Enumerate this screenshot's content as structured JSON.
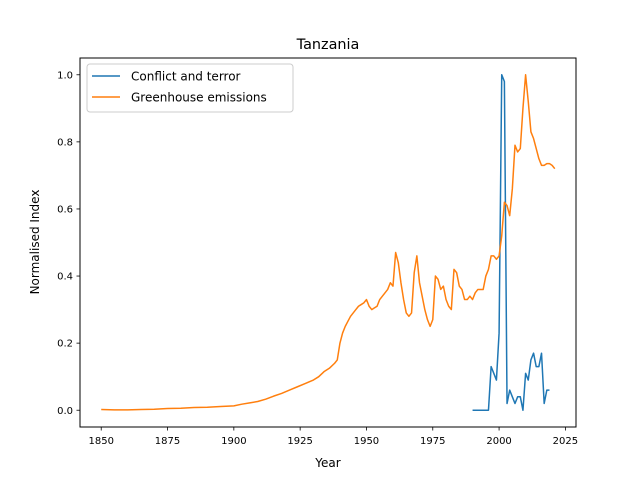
{
  "chart_data": {
    "type": "line",
    "title": "Tanzania",
    "xlabel": "Year",
    "ylabel": "Normalised Index",
    "xlim": [
      1842,
      2029
    ],
    "ylim": [
      -0.05,
      1.05
    ],
    "xticks": [
      1850,
      1875,
      1900,
      1925,
      1950,
      1975,
      2000,
      2025
    ],
    "yticks": [
      0.0,
      0.2,
      0.4,
      0.6,
      0.8,
      1.0
    ],
    "xtick_labels": [
      "1850",
      "1875",
      "1900",
      "1925",
      "1950",
      "1975",
      "2000",
      "2025"
    ],
    "ytick_labels": [
      "0.0",
      "0.2",
      "0.4",
      "0.6",
      "0.8",
      "1.0"
    ],
    "grid": false,
    "legend_position": "top-left",
    "series": [
      {
        "name": "Conflict and terror",
        "color": "#1f77b4",
        "points": [
          [
            1990,
            0.0
          ],
          [
            1991,
            0.0
          ],
          [
            1992,
            0.0
          ],
          [
            1993,
            0.0
          ],
          [
            1994,
            0.0
          ],
          [
            1995,
            0.0
          ],
          [
            1996,
            0.0
          ],
          [
            1997,
            0.13
          ],
          [
            1998,
            0.11
          ],
          [
            1999,
            0.09
          ],
          [
            2000,
            0.23
          ],
          [
            2001,
            1.0
          ],
          [
            2002,
            0.98
          ],
          [
            2003,
            0.02
          ],
          [
            2004,
            0.06
          ],
          [
            2005,
            0.04
          ],
          [
            2006,
            0.02
          ],
          [
            2007,
            0.04
          ],
          [
            2008,
            0.04
          ],
          [
            2009,
            0.0
          ],
          [
            2010,
            0.11
          ],
          [
            2011,
            0.09
          ],
          [
            2012,
            0.15
          ],
          [
            2013,
            0.17
          ],
          [
            2014,
            0.13
          ],
          [
            2015,
            0.13
          ],
          [
            2016,
            0.17
          ],
          [
            2017,
            0.02
          ],
          [
            2018,
            0.06
          ],
          [
            2019,
            0.06
          ]
        ]
      },
      {
        "name": "Greenhouse emissions",
        "color": "#ff7f0e",
        "points": [
          [
            1850,
            0.002
          ],
          [
            1855,
            0.001
          ],
          [
            1860,
            0.001
          ],
          [
            1865,
            0.002
          ],
          [
            1870,
            0.003
          ],
          [
            1875,
            0.005
          ],
          [
            1880,
            0.006
          ],
          [
            1885,
            0.008
          ],
          [
            1890,
            0.009
          ],
          [
            1895,
            0.011
          ],
          [
            1900,
            0.013
          ],
          [
            1903,
            0.018
          ],
          [
            1906,
            0.022
          ],
          [
            1909,
            0.026
          ],
          [
            1912,
            0.033
          ],
          [
            1915,
            0.042
          ],
          [
            1918,
            0.05
          ],
          [
            1921,
            0.06
          ],
          [
            1924,
            0.07
          ],
          [
            1927,
            0.08
          ],
          [
            1930,
            0.09
          ],
          [
            1932,
            0.1
          ],
          [
            1934,
            0.115
          ],
          [
            1936,
            0.125
          ],
          [
            1938,
            0.14
          ],
          [
            1939,
            0.15
          ],
          [
            1940,
            0.2
          ],
          [
            1941,
            0.23
          ],
          [
            1942,
            0.25
          ],
          [
            1943,
            0.265
          ],
          [
            1944,
            0.28
          ],
          [
            1945,
            0.29
          ],
          [
            1946,
            0.3
          ],
          [
            1947,
            0.31
          ],
          [
            1948,
            0.315
          ],
          [
            1949,
            0.32
          ],
          [
            1950,
            0.33
          ],
          [
            1951,
            0.31
          ],
          [
            1952,
            0.3
          ],
          [
            1953,
            0.305
          ],
          [
            1954,
            0.31
          ],
          [
            1955,
            0.33
          ],
          [
            1956,
            0.34
          ],
          [
            1957,
            0.35
          ],
          [
            1958,
            0.36
          ],
          [
            1959,
            0.38
          ],
          [
            1960,
            0.37
          ],
          [
            1961,
            0.47
          ],
          [
            1962,
            0.44
          ],
          [
            1963,
            0.38
          ],
          [
            1964,
            0.33
          ],
          [
            1965,
            0.29
          ],
          [
            1966,
            0.28
          ],
          [
            1967,
            0.29
          ],
          [
            1968,
            0.41
          ],
          [
            1969,
            0.46
          ],
          [
            1970,
            0.38
          ],
          [
            1971,
            0.34
          ],
          [
            1972,
            0.3
          ],
          [
            1973,
            0.27
          ],
          [
            1974,
            0.25
          ],
          [
            1975,
            0.27
          ],
          [
            1976,
            0.4
          ],
          [
            1977,
            0.39
          ],
          [
            1978,
            0.36
          ],
          [
            1979,
            0.37
          ],
          [
            1980,
            0.33
          ],
          [
            1981,
            0.31
          ],
          [
            1982,
            0.3
          ],
          [
            1983,
            0.42
          ],
          [
            1984,
            0.41
          ],
          [
            1985,
            0.37
          ],
          [
            1986,
            0.36
          ],
          [
            1987,
            0.33
          ],
          [
            1988,
            0.33
          ],
          [
            1989,
            0.34
          ],
          [
            1990,
            0.33
          ],
          [
            1991,
            0.35
          ],
          [
            1992,
            0.36
          ],
          [
            1993,
            0.36
          ],
          [
            1994,
            0.36
          ],
          [
            1995,
            0.4
          ],
          [
            1996,
            0.42
          ],
          [
            1997,
            0.46
          ],
          [
            1998,
            0.46
          ],
          [
            1999,
            0.45
          ],
          [
            2000,
            0.46
          ],
          [
            2001,
            0.52
          ],
          [
            2002,
            0.62
          ],
          [
            2003,
            0.61
          ],
          [
            2004,
            0.58
          ],
          [
            2005,
            0.66
          ],
          [
            2006,
            0.79
          ],
          [
            2007,
            0.77
          ],
          [
            2008,
            0.78
          ],
          [
            2009,
            0.9
          ],
          [
            2010,
            1.0
          ],
          [
            2011,
            0.92
          ],
          [
            2012,
            0.83
          ],
          [
            2013,
            0.81
          ],
          [
            2014,
            0.78
          ],
          [
            2015,
            0.75
          ],
          [
            2016,
            0.73
          ],
          [
            2017,
            0.73
          ],
          [
            2018,
            0.735
          ],
          [
            2019,
            0.735
          ],
          [
            2020,
            0.73
          ],
          [
            2021,
            0.72
          ]
        ]
      }
    ]
  }
}
